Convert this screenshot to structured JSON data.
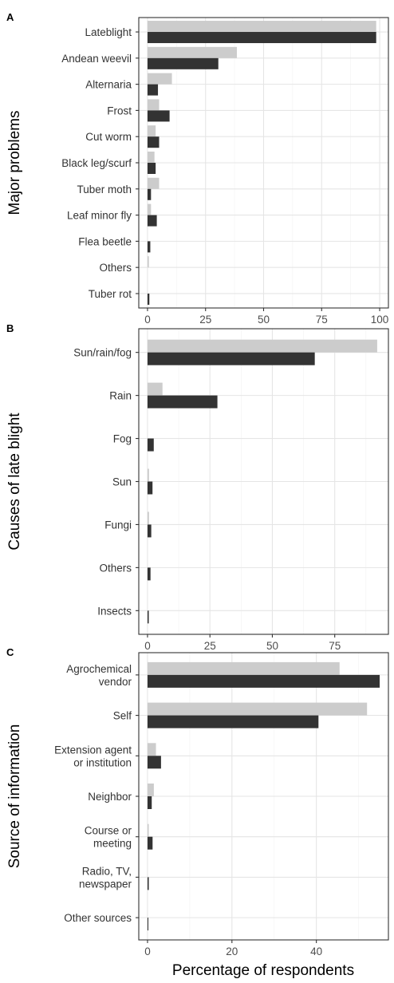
{
  "colors": {
    "light": "#cccccc",
    "dark": "#333333"
  },
  "figure": {
    "xlabel": "Percentage of respondents"
  },
  "chart_data": [
    {
      "type": "bar",
      "orientation": "horizontal",
      "panel": "A",
      "ylabel": "Major problems",
      "xlim": [
        0,
        100
      ],
      "xticks": [
        0,
        25,
        50,
        75,
        100
      ],
      "tick_labels": [
        "0",
        "25",
        "50",
        "75",
        "100"
      ],
      "categories": [
        {
          "lines": [
            "Lateblight"
          ],
          "light": 98.5,
          "dark": 98.5
        },
        {
          "lines": [
            "Andean weevil"
          ],
          "light": 38.5,
          "dark": 30.5
        },
        {
          "lines": [
            "Alternaria"
          ],
          "light": 10.5,
          "dark": 4.5
        },
        {
          "lines": [
            "Frost"
          ],
          "light": 5,
          "dark": 9.5
        },
        {
          "lines": [
            "Cut worm"
          ],
          "light": 3.5,
          "dark": 5
        },
        {
          "lines": [
            "Black leg/scurf"
          ],
          "light": 3,
          "dark": 3.5
        },
        {
          "lines": [
            "Tuber moth"
          ],
          "light": 5,
          "dark": 1.5
        },
        {
          "lines": [
            "Leaf minor fly"
          ],
          "light": 1.5,
          "dark": 4
        },
        {
          "lines": [
            "Flea beetle"
          ],
          "light": 0,
          "dark": 1.2
        },
        {
          "lines": [
            "Others"
          ],
          "light": 0.6,
          "dark": 0
        },
        {
          "lines": [
            "Tuber rot"
          ],
          "light": 0,
          "dark": 0.8
        }
      ]
    },
    {
      "type": "bar",
      "orientation": "horizontal",
      "panel": "B",
      "ylabel": "Causes of late blight",
      "xlim": [
        0,
        93
      ],
      "xticks": [
        0,
        25,
        50,
        75
      ],
      "tick_labels": [
        "0",
        "25",
        "50",
        "75"
      ],
      "categories": [
        {
          "lines": [
            "Sun/rain/fog"
          ],
          "light": 92,
          "dark": 67
        },
        {
          "lines": [
            "Rain"
          ],
          "light": 6,
          "dark": 28
        },
        {
          "lines": [
            "Fog"
          ],
          "light": 0,
          "dark": 2.5
        },
        {
          "lines": [
            "Sun"
          ],
          "light": 0.6,
          "dark": 2
        },
        {
          "lines": [
            "Fungi"
          ],
          "light": 0.6,
          "dark": 1.5
        },
        {
          "lines": [
            "Others"
          ],
          "light": 0,
          "dark": 1.2
        },
        {
          "lines": [
            "Insects"
          ],
          "light": 0,
          "dark": 0.5
        }
      ]
    },
    {
      "type": "bar",
      "orientation": "horizontal",
      "panel": "C",
      "ylabel": "Source of information",
      "xlim": [
        0,
        55
      ],
      "xticks": [
        0,
        20,
        40
      ],
      "tick_labels": [
        "0",
        "20",
        "40"
      ],
      "categories": [
        {
          "lines": [
            "Agrochemical",
            "vendor"
          ],
          "light": 45.5,
          "dark": 55
        },
        {
          "lines": [
            "Self"
          ],
          "light": 52,
          "dark": 40.5
        },
        {
          "lines": [
            "Extension agent",
            "or institution"
          ],
          "light": 2,
          "dark": 3.2
        },
        {
          "lines": [
            "Neighbor"
          ],
          "light": 1.5,
          "dark": 1
        },
        {
          "lines": [
            "Course or",
            "meeting"
          ],
          "light": 0.3,
          "dark": 1.2
        },
        {
          "lines": [
            "Radio, TV,",
            "newspaper"
          ],
          "light": 0,
          "dark": 0.3
        },
        {
          "lines": [
            "Other sources"
          ],
          "light": 0,
          "dark": 0.2
        }
      ]
    }
  ]
}
